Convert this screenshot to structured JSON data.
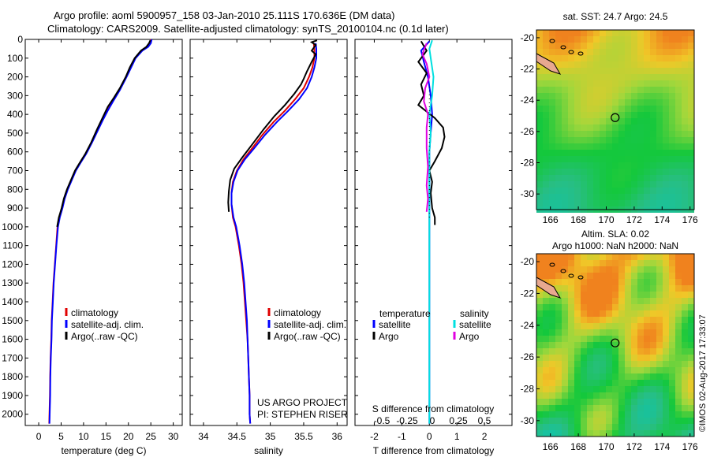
{
  "header": {
    "title_line1": "Argo profile: aoml 5900957_158 03-Jan-2010 25.111S 170.636E (DM data)",
    "title_line2": "Climatology: CARS2009. Satellite-adjusted climatology: synTS_20100104.nc (0.1d later)"
  },
  "colors": {
    "climatology": "#e00000",
    "satellite": "#0000ff",
    "argo": "#000000",
    "sal_satellite": "#00e0e0",
    "sal_argo": "#e000e0"
  },
  "chart_data": [
    {
      "type": "line",
      "xlabel": "temperature (deg C)",
      "xlim": [
        -3,
        32
      ],
      "xticks": [
        0,
        5,
        10,
        15,
        20,
        25,
        30
      ],
      "ylim": [
        2060,
        0
      ],
      "yticks": [
        0,
        100,
        200,
        300,
        400,
        500,
        600,
        700,
        800,
        900,
        1000,
        1100,
        1200,
        1300,
        1400,
        1500,
        1600,
        1700,
        1800,
        1900,
        2000
      ],
      "legend": [
        "climatology",
        "satellite-adj. clim.",
        "Argo(..raw -QC)"
      ],
      "series": [
        {
          "name": "climatology",
          "color": "#e00000",
          "points": [
            [
              25.0,
              0
            ],
            [
              24.8,
              20
            ],
            [
              24.2,
              40
            ],
            [
              23.0,
              60
            ],
            [
              21.5,
              100
            ],
            [
              20.5,
              150
            ],
            [
              19.5,
              200
            ],
            [
              18.0,
              270
            ],
            [
              16.5,
              330
            ],
            [
              15.3,
              380
            ],
            [
              14.2,
              430
            ],
            [
              13.0,
              490
            ],
            [
              11.8,
              550
            ],
            [
              10.5,
              610
            ],
            [
              9.2,
              660
            ],
            [
              8.2,
              700
            ],
            [
              7.3,
              750
            ],
            [
              6.4,
              800
            ],
            [
              5.7,
              850
            ],
            [
              5.2,
              900
            ],
            [
              4.6,
              950
            ],
            [
              4.2,
              1000
            ],
            [
              3.9,
              1100
            ],
            [
              3.6,
              1200
            ],
            [
              3.3,
              1300
            ],
            [
              3.1,
              1400
            ],
            [
              2.9,
              1500
            ],
            [
              2.8,
              1600
            ],
            [
              2.65,
              1700
            ],
            [
              2.55,
              1800
            ],
            [
              2.5,
              1900
            ],
            [
              2.4,
              2000
            ],
            [
              2.35,
              2050
            ]
          ]
        },
        {
          "name": "satellite-adj. clim.",
          "color": "#0000ff",
          "points": [
            [
              25.2,
              0
            ],
            [
              25.0,
              20
            ],
            [
              24.4,
              40
            ],
            [
              23.1,
              60
            ],
            [
              21.6,
              100
            ],
            [
              20.6,
              150
            ],
            [
              19.6,
              200
            ],
            [
              18.1,
              270
            ],
            [
              16.6,
              330
            ],
            [
              15.4,
              380
            ],
            [
              14.3,
              430
            ],
            [
              13.1,
              490
            ],
            [
              11.9,
              550
            ],
            [
              10.6,
              610
            ],
            [
              9.3,
              660
            ],
            [
              8.3,
              700
            ],
            [
              7.4,
              750
            ],
            [
              6.5,
              800
            ],
            [
              5.8,
              850
            ],
            [
              5.3,
              900
            ],
            [
              4.7,
              950
            ],
            [
              4.3,
              1000
            ],
            [
              3.95,
              1100
            ],
            [
              3.65,
              1200
            ],
            [
              3.35,
              1300
            ],
            [
              3.15,
              1400
            ],
            [
              2.95,
              1500
            ],
            [
              2.85,
              1600
            ],
            [
              2.7,
              1700
            ],
            [
              2.6,
              1800
            ],
            [
              2.55,
              1900
            ],
            [
              2.45,
              2000
            ],
            [
              2.4,
              2050
            ]
          ]
        },
        {
          "name": "Argo(..raw -QC)",
          "color": "#000000",
          "points": [
            [
              24.9,
              5
            ],
            [
              24.6,
              20
            ],
            [
              24.0,
              40
            ],
            [
              22.8,
              60
            ],
            [
              21.4,
              100
            ],
            [
              20.3,
              150
            ],
            [
              19.4,
              200
            ],
            [
              18.1,
              260
            ],
            [
              16.8,
              310
            ],
            [
              15.4,
              360
            ],
            [
              14.2,
              420
            ],
            [
              13.0,
              480
            ],
            [
              11.7,
              550
            ],
            [
              10.4,
              610
            ],
            [
              9.1,
              660
            ],
            [
              8.1,
              700
            ],
            [
              7.2,
              750
            ],
            [
              6.3,
              800
            ],
            [
              5.6,
              850
            ],
            [
              5.1,
              900
            ],
            [
              4.5,
              950
            ],
            [
              4.1,
              1000
            ]
          ]
        }
      ]
    },
    {
      "type": "line",
      "xlabel": "salinity",
      "xlim": [
        33.8,
        36.15
      ],
      "xticks": [
        34,
        34.5,
        35,
        35.5,
        36
      ],
      "ylim": [
        2060,
        0
      ],
      "legend": [
        "climatology",
        "satellite-adj. clim.",
        "Argo(..raw -QC)"
      ],
      "annotation": [
        "US ARGO PROJECT",
        "PI: STEPHEN RISER"
      ],
      "series": [
        {
          "name": "climatology",
          "color": "#e00000",
          "points": [
            [
              35.65,
              20
            ],
            [
              35.66,
              50
            ],
            [
              35.66,
              100
            ],
            [
              35.63,
              150
            ],
            [
              35.58,
              200
            ],
            [
              35.5,
              260
            ],
            [
              35.37,
              320
            ],
            [
              35.22,
              380
            ],
            [
              35.05,
              440
            ],
            [
              34.88,
              510
            ],
            [
              34.73,
              580
            ],
            [
              34.6,
              640
            ],
            [
              34.5,
              700
            ],
            [
              34.44,
              760
            ],
            [
              34.42,
              820
            ],
            [
              34.42,
              880
            ],
            [
              34.44,
              950
            ],
            [
              34.48,
              1000
            ],
            [
              34.53,
              1100
            ],
            [
              34.57,
              1200
            ],
            [
              34.6,
              1300
            ],
            [
              34.62,
              1400
            ],
            [
              34.64,
              1500
            ],
            [
              34.66,
              1600
            ],
            [
              34.67,
              1700
            ],
            [
              34.68,
              1800
            ],
            [
              34.69,
              1900
            ],
            [
              34.69,
              2000
            ],
            [
              34.7,
              2050
            ]
          ]
        },
        {
          "name": "satellite-adj. clim.",
          "color": "#0000ff",
          "points": [
            [
              35.68,
              20
            ],
            [
              35.69,
              50
            ],
            [
              35.69,
              100
            ],
            [
              35.66,
              150
            ],
            [
              35.62,
              200
            ],
            [
              35.55,
              260
            ],
            [
              35.43,
              320
            ],
            [
              35.27,
              380
            ],
            [
              35.1,
              440
            ],
            [
              34.92,
              510
            ],
            [
              34.76,
              580
            ],
            [
              34.62,
              640
            ],
            [
              34.51,
              700
            ],
            [
              34.45,
              760
            ],
            [
              34.42,
              820
            ],
            [
              34.42,
              880
            ],
            [
              34.45,
              950
            ],
            [
              34.49,
              1000
            ],
            [
              34.54,
              1100
            ],
            [
              34.58,
              1200
            ],
            [
              34.61,
              1300
            ],
            [
              34.63,
              1400
            ],
            [
              34.65,
              1500
            ],
            [
              34.66,
              1600
            ],
            [
              34.67,
              1700
            ],
            [
              34.68,
              1800
            ],
            [
              34.69,
              1900
            ],
            [
              34.69,
              2000
            ],
            [
              34.7,
              2050
            ]
          ]
        },
        {
          "name": "Argo(..raw -QC)",
          "color": "#000000",
          "points": [
            [
              35.7,
              5
            ],
            [
              35.62,
              15
            ],
            [
              35.68,
              30
            ],
            [
              35.62,
              60
            ],
            [
              35.68,
              80
            ],
            [
              35.62,
              120
            ],
            [
              35.55,
              170
            ],
            [
              35.5,
              210
            ],
            [
              35.46,
              240
            ],
            [
              35.36,
              290
            ],
            [
              35.22,
              350
            ],
            [
              35.06,
              410
            ],
            [
              34.9,
              480
            ],
            [
              34.73,
              560
            ],
            [
              34.58,
              630
            ],
            [
              34.46,
              690
            ],
            [
              34.4,
              750
            ],
            [
              34.38,
              810
            ],
            [
              34.37,
              870
            ],
            [
              34.38,
              920
            ]
          ]
        }
      ]
    },
    {
      "type": "line",
      "xlabel": "T difference from climatology",
      "xlabel2": "S difference from climatology",
      "xlim": [
        -2.7,
        3.0
      ],
      "xticks": [
        -2,
        -1,
        0,
        1,
        2
      ],
      "sticks": [
        "-0.5",
        "-0.25",
        "0",
        "0.25",
        "0.5"
      ],
      "ylim": [
        2060,
        0
      ],
      "legend_left_title": "temperature",
      "legend_right_title": "salinity",
      "legend_left": [
        "satellite",
        "Argo"
      ],
      "legend_right": [
        "satellite",
        "Argo"
      ],
      "series": [
        {
          "name": "T satellite",
          "color": "#0000ff",
          "points": [
            [
              0.0,
              10
            ],
            [
              -0.3,
              60
            ],
            [
              -0.2,
              120
            ],
            [
              -0.05,
              200
            ],
            [
              0.05,
              300
            ],
            [
              0.1,
              400
            ],
            [
              0.05,
              500
            ],
            [
              0.0,
              600
            ],
            [
              0.0,
              1000
            ],
            [
              0.0,
              2050
            ]
          ]
        },
        {
          "name": "T Argo",
          "color": "#000000",
          "points": [
            [
              -0.3,
              10
            ],
            [
              -0.1,
              60
            ],
            [
              -0.4,
              120
            ],
            [
              -0.1,
              180
            ],
            [
              -0.3,
              240
            ],
            [
              -0.2,
              300
            ],
            [
              -0.4,
              350
            ],
            [
              0.2,
              420
            ],
            [
              0.5,
              470
            ],
            [
              0.55,
              520
            ],
            [
              0.45,
              580
            ],
            [
              0.2,
              650
            ],
            [
              0.0,
              700
            ],
            [
              0.1,
              760
            ],
            [
              0.05,
              820
            ],
            [
              0.1,
              900
            ],
            [
              0.2,
              950
            ],
            [
              0.2,
              990
            ]
          ]
        },
        {
          "name": "S satellite",
          "color": "#00e0e0",
          "points": [
            [
              0.1,
              5
            ],
            [
              0.0,
              50
            ],
            [
              0.05,
              100
            ],
            [
              0.15,
              200
            ],
            [
              0.1,
              300
            ],
            [
              0.0,
              400
            ],
            [
              0.05,
              500
            ],
            [
              0.0,
              600
            ],
            [
              0.0,
              1000
            ],
            [
              0.0,
              2050
            ]
          ]
        },
        {
          "name": "S Argo",
          "color": "#e000e0",
          "points": [
            [
              -0.1,
              20
            ],
            [
              -0.25,
              80
            ],
            [
              -0.1,
              130
            ],
            [
              0.0,
              200
            ],
            [
              -0.15,
              260
            ],
            [
              -0.2,
              330
            ],
            [
              -0.05,
              400
            ],
            [
              -0.1,
              470
            ],
            [
              -0.1,
              580
            ],
            [
              -0.05,
              680
            ],
            [
              -0.1,
              780
            ],
            [
              -0.05,
              850
            ],
            [
              -0.1,
              920
            ]
          ]
        }
      ]
    },
    {
      "type": "heatmap",
      "title": "sat. SST: 24.7 Argo: 24.5",
      "xticks": [
        166,
        168,
        170,
        172,
        174,
        176
      ],
      "yticks": [
        -20,
        -22,
        -24,
        -26,
        -28,
        -30
      ],
      "xlim": [
        165,
        176.3
      ],
      "ylim": [
        -19.5,
        -31.0
      ],
      "float_position": [
        170.636,
        -25.111
      ]
    },
    {
      "type": "heatmap",
      "title_line1": "Altim. SLA: 0.02",
      "title_line2": "Argo h1000: NaN h2000: NaN",
      "xticks": [
        166,
        168,
        170,
        172,
        174,
        176
      ],
      "yticks": [
        -20,
        -22,
        -24,
        -26,
        -28,
        -30
      ],
      "xlim": [
        165,
        176.3
      ],
      "ylim": [
        -19.5,
        -31.0
      ],
      "float_position": [
        170.636,
        -25.111
      ]
    }
  ],
  "credit": "©IMOS 02-Aug-2017 17:33:07"
}
